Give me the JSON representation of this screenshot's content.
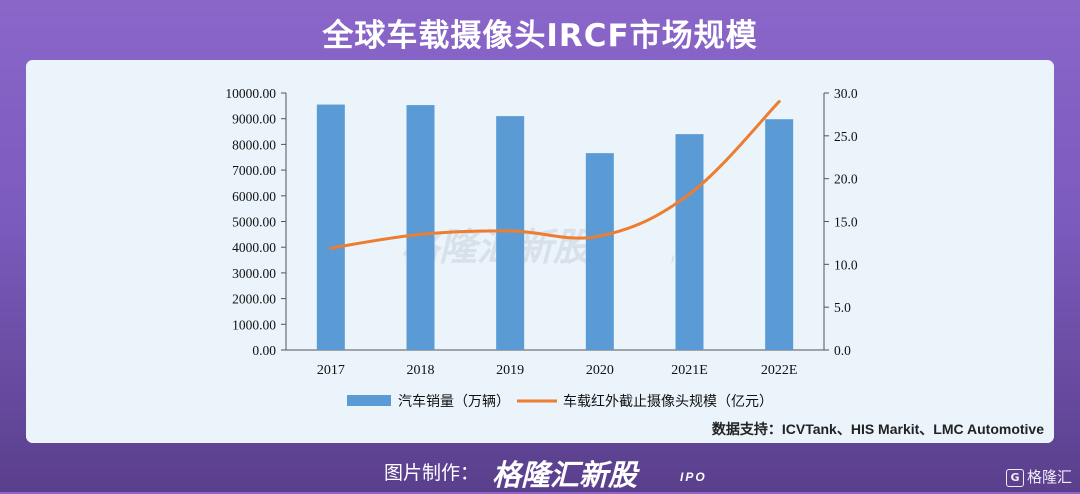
{
  "title": "全球车载摄像头IRCF市场规模",
  "source": "数据支持：ICVTank、HIS Markit、LMC Automotive",
  "watermark": {
    "brand": "格隆汇新股",
    "suffix": "IPO"
  },
  "footer": {
    "label": "图片制作：",
    "brand": "格隆汇新股",
    "suffix": "IPO",
    "corner_logo": "格隆汇",
    "corner_icon": "G"
  },
  "colors": {
    "bar": "#5b9bd5",
    "line": "#ed7d31",
    "plot_bg": "#eaf4fa"
  },
  "chart_data": {
    "type": "bar",
    "categories": [
      "2017",
      "2018",
      "2019",
      "2020",
      "2021E",
      "2022E"
    ],
    "series": [
      {
        "name": "汽车销量（万辆）",
        "type": "bar",
        "axis": "left",
        "values": [
          9550,
          9530,
          9100,
          7660,
          8400,
          8980
        ]
      },
      {
        "name": "车载红外截止摄像头规模（亿元）",
        "type": "line",
        "axis": "right",
        "values": [
          11.9,
          13.5,
          13.9,
          13.3,
          18.2,
          29.0
        ]
      }
    ],
    "y_left": {
      "min": 0,
      "max": 10000,
      "ticks": [
        "0.00",
        "1000.00",
        "2000.00",
        "3000.00",
        "4000.00",
        "5000.00",
        "6000.00",
        "7000.00",
        "8000.00",
        "9000.00",
        "10000.00"
      ]
    },
    "y_right": {
      "min": 0,
      "max": 30,
      "ticks": [
        "0.0",
        "5.0",
        "10.0",
        "15.0",
        "20.0",
        "25.0",
        "30.0"
      ]
    },
    "legend_position": "bottom-center",
    "grid": false
  }
}
